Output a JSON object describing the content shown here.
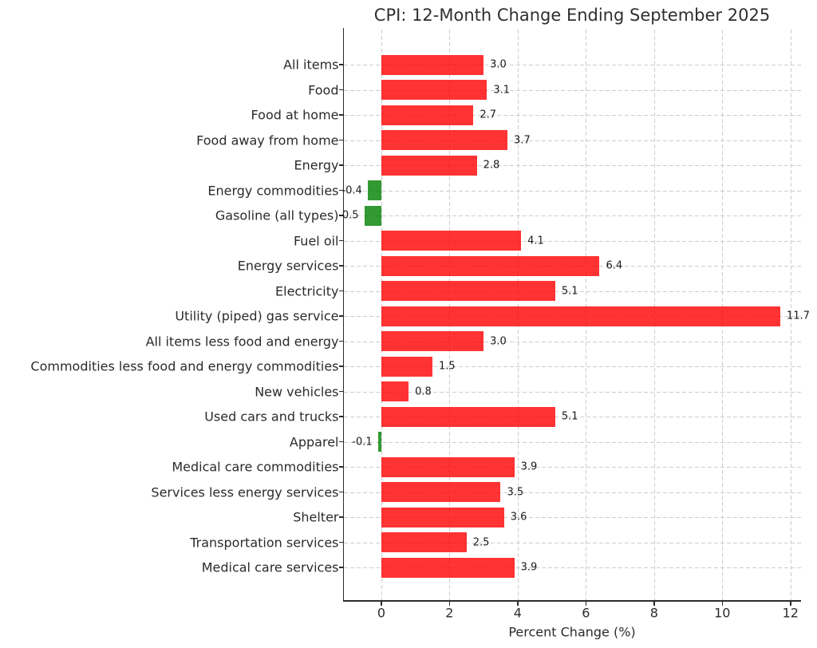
{
  "chart_data": {
    "type": "bar",
    "orientation": "horizontal",
    "title": "CPI: 12-Month Change Ending September 2025",
    "xlabel": "Percent Change (%)",
    "ylabel": "",
    "categories": [
      "All items",
      "Food",
      "Food at home",
      "Food away from home",
      "Energy",
      "Energy commodities",
      "Gasoline (all types)",
      "Fuel oil",
      "Energy services",
      "Electricity",
      "Utility (piped) gas service",
      "All items less food and energy",
      "Commodities less food and energy commodities",
      "New vehicles",
      "Used cars and trucks",
      "Apparel",
      "Medical care commodities",
      "Services less energy services",
      "Shelter",
      "Transportation services",
      "Medical care services"
    ],
    "values": [
      3.0,
      3.1,
      2.7,
      3.7,
      2.8,
      -0.4,
      -0.5,
      4.1,
      6.4,
      5.1,
      11.7,
      3.0,
      1.5,
      0.8,
      5.1,
      -0.1,
      3.9,
      3.5,
      3.6,
      2.5,
      3.9
    ],
    "value_labels": [
      "3.0",
      "3.1",
      "2.7",
      "3.7",
      "2.8",
      "-0.4",
      "-0.5",
      "4.1",
      "6.4",
      "5.1",
      "11.7",
      "3.0",
      "1.5",
      "0.8",
      "5.1",
      "-0.1",
      "3.9",
      "3.5",
      "3.6",
      "2.5",
      "3.9"
    ],
    "xticks": [
      0,
      2,
      4,
      6,
      8,
      10,
      12
    ],
    "xtick_labels": [
      "0",
      "2",
      "4",
      "6",
      "8",
      "10",
      "12"
    ],
    "xlim": [
      -1.11,
      12.31
    ],
    "grid": "dashed, both axes",
    "legend": "none",
    "positive_color": "#ff0000",
    "negative_color": "#008000",
    "bar_alpha": 0.8,
    "grid_color": "#cdcdcd",
    "axis_color": "#2b2b2b"
  }
}
